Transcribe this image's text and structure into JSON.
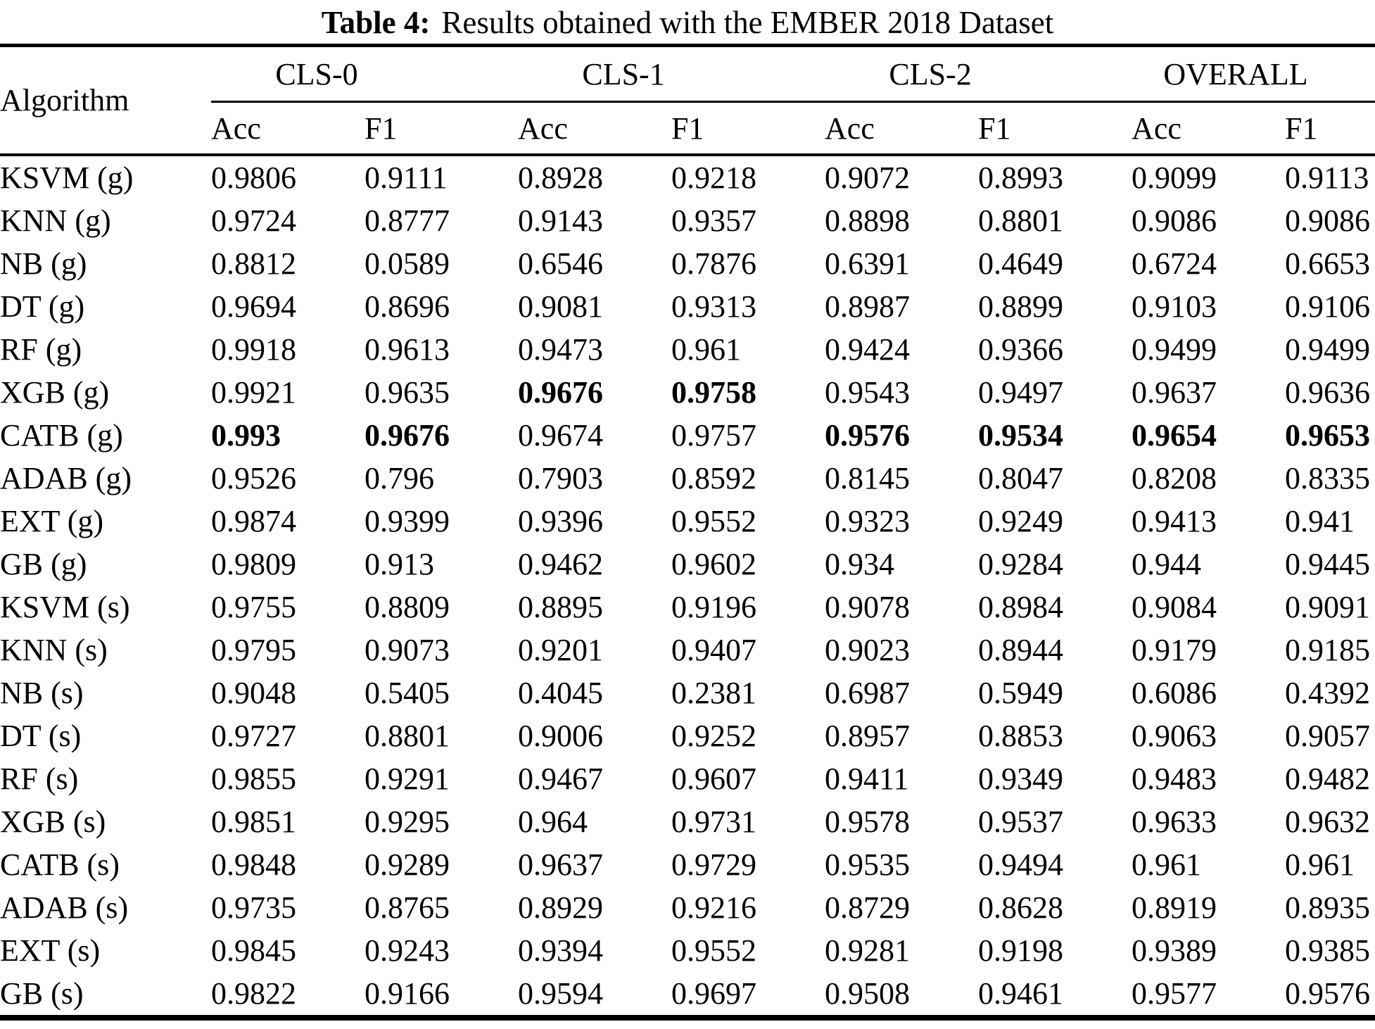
{
  "title": {
    "prefix": "Table 4:",
    "text": "Results obtained with the EMBER 2018 Dataset"
  },
  "colors": {
    "text": "#000000",
    "background": "#ffffff",
    "rule": "#000000"
  },
  "table": {
    "corner_header": "Algorithm",
    "groups": [
      {
        "label": "CLS-0"
      },
      {
        "label": "CLS-1"
      },
      {
        "label": "CLS-2"
      },
      {
        "label": "OVERALL"
      }
    ],
    "subheaders": [
      "Acc",
      "F1",
      "Acc",
      "F1",
      "Acc",
      "F1",
      "Acc",
      "F1"
    ],
    "rows": [
      {
        "algorithm": "KSVM (g)",
        "values": [
          "0.9806",
          "0.9111",
          "0.8928",
          "0.9218",
          "0.9072",
          "0.8993",
          "0.9099",
          "0.9113"
        ]
      },
      {
        "algorithm": "KNN (g)",
        "values": [
          "0.9724",
          "0.8777",
          "0.9143",
          "0.9357",
          "0.8898",
          "0.8801",
          "0.9086",
          "0.9086"
        ]
      },
      {
        "algorithm": "NB (g)",
        "values": [
          "0.8812",
          "0.0589",
          "0.6546",
          "0.7876",
          "0.6391",
          "0.4649",
          "0.6724",
          "0.6653"
        ]
      },
      {
        "algorithm": "DT (g)",
        "values": [
          "0.9694",
          "0.8696",
          "0.9081",
          "0.9313",
          "0.8987",
          "0.8899",
          "0.9103",
          "0.9106"
        ]
      },
      {
        "algorithm": "RF (g)",
        "values": [
          "0.9918",
          "0.9613",
          "0.9473",
          "0.961",
          "0.9424",
          "0.9366",
          "0.9499",
          "0.9499"
        ]
      },
      {
        "algorithm": "XGB (g)",
        "values": [
          "0.9921",
          "0.9635",
          "0.9676",
          "0.9758",
          "0.9543",
          "0.9497",
          "0.9637",
          "0.9636"
        ],
        "bold": [
          false,
          false,
          true,
          true,
          false,
          false,
          false,
          false
        ]
      },
      {
        "algorithm": "CATB (g)",
        "values": [
          "0.993",
          "0.9676",
          "0.9674",
          "0.9757",
          "0.9576",
          "0.9534",
          "0.9654",
          "0.9653"
        ],
        "bold": [
          true,
          true,
          false,
          false,
          true,
          true,
          true,
          true
        ]
      },
      {
        "algorithm": "ADAB (g)",
        "values": [
          "0.9526",
          "0.796",
          "0.7903",
          "0.8592",
          "0.8145",
          "0.8047",
          "0.8208",
          "0.8335"
        ]
      },
      {
        "algorithm": "EXT (g)",
        "values": [
          "0.9874",
          "0.9399",
          "0.9396",
          "0.9552",
          "0.9323",
          "0.9249",
          "0.9413",
          "0.941"
        ]
      },
      {
        "algorithm": "GB (g)",
        "values": [
          "0.9809",
          "0.913",
          "0.9462",
          "0.9602",
          "0.934",
          "0.9284",
          "0.944",
          "0.9445"
        ]
      },
      {
        "algorithm": "KSVM (s)",
        "values": [
          "0.9755",
          "0.8809",
          "0.8895",
          "0.9196",
          "0.9078",
          "0.8984",
          "0.9084",
          "0.9091"
        ]
      },
      {
        "algorithm": "KNN (s)",
        "values": [
          "0.9795",
          "0.9073",
          "0.9201",
          "0.9407",
          "0.9023",
          "0.8944",
          "0.9179",
          "0.9185"
        ]
      },
      {
        "algorithm": "NB (s)",
        "values": [
          "0.9048",
          "0.5405",
          "0.4045",
          "0.2381",
          "0.6987",
          "0.5949",
          "0.6086",
          "0.4392"
        ]
      },
      {
        "algorithm": "DT (s)",
        "values": [
          "0.9727",
          "0.8801",
          "0.9006",
          "0.9252",
          "0.8957",
          "0.8853",
          "0.9063",
          "0.9057"
        ]
      },
      {
        "algorithm": "RF (s)",
        "values": [
          "0.9855",
          "0.9291",
          "0.9467",
          "0.9607",
          "0.9411",
          "0.9349",
          "0.9483",
          "0.9482"
        ]
      },
      {
        "algorithm": "XGB (s)",
        "values": [
          "0.9851",
          "0.9295",
          "0.964",
          "0.9731",
          "0.9578",
          "0.9537",
          "0.9633",
          "0.9632"
        ]
      },
      {
        "algorithm": "CATB (s)",
        "values": [
          "0.9848",
          "0.9289",
          "0.9637",
          "0.9729",
          "0.9535",
          "0.9494",
          "0.961",
          "0.961"
        ]
      },
      {
        "algorithm": "ADAB (s)",
        "values": [
          "0.9735",
          "0.8765",
          "0.8929",
          "0.9216",
          "0.8729",
          "0.8628",
          "0.8919",
          "0.8935"
        ]
      },
      {
        "algorithm": "EXT (s)",
        "values": [
          "0.9845",
          "0.9243",
          "0.9394",
          "0.9552",
          "0.9281",
          "0.9198",
          "0.9389",
          "0.9385"
        ]
      },
      {
        "algorithm": "GB (s)",
        "values": [
          "0.9822",
          "0.9166",
          "0.9594",
          "0.9697",
          "0.9508",
          "0.9461",
          "0.9577",
          "0.9576"
        ]
      }
    ]
  }
}
